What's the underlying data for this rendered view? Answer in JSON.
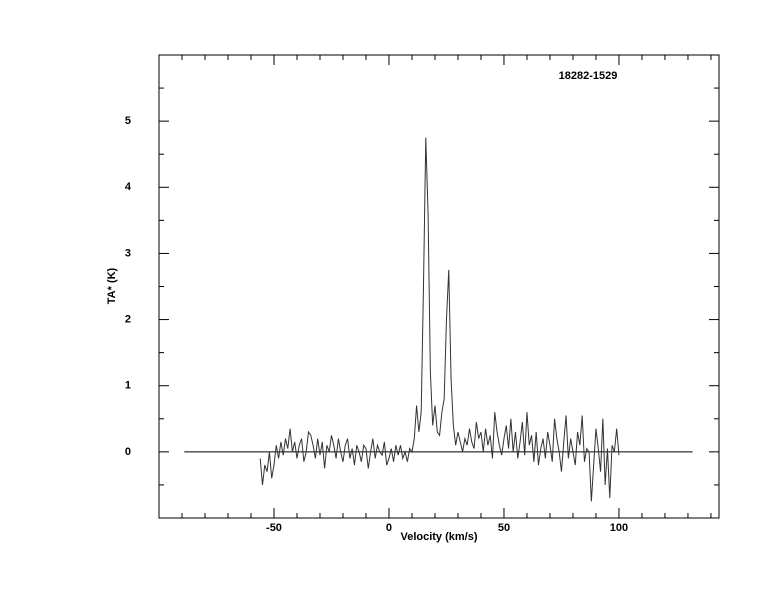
{
  "chart_data": {
    "type": "line",
    "title": "18282-1529",
    "x_label": "Velocity (km/s)",
    "y_label": "TA* (K)",
    "xlim": [
      -100,
      143.5
    ],
    "ylim": [
      -1,
      6
    ],
    "xticks": [
      -50,
      0,
      50,
      100
    ],
    "yticks": [
      0,
      1,
      2,
      3,
      4,
      5
    ],
    "xticks_minor": [
      -90,
      -80,
      -70,
      -60,
      -40,
      -30,
      -20,
      -10,
      10,
      20,
      30,
      40,
      60,
      70,
      80,
      90,
      110,
      120,
      130,
      140
    ],
    "yticks_minor": [
      -0.5,
      0.5,
      1.5,
      2.5,
      3.5,
      4.5,
      5.5
    ],
    "baseline": {
      "x": [
        -89,
        132
      ],
      "y": [
        0,
        0
      ]
    },
    "color": "#333333",
    "x": [
      -56,
      -55,
      -54,
      -53,
      -52,
      -51,
      -50,
      -49,
      -48,
      -47,
      -46,
      -45,
      -44,
      -43,
      -42,
      -41,
      -40,
      -39,
      -38,
      -37,
      -36,
      -35,
      -34,
      -33,
      -32,
      -31,
      -30,
      -29,
      -28,
      -27,
      -26,
      -25,
      -24,
      -23,
      -22,
      -21,
      -20,
      -19,
      -18,
      -17,
      -16,
      -15,
      -14,
      -13,
      -12,
      -11,
      -10,
      -9,
      -8,
      -7,
      -6,
      -5,
      -4,
      -3,
      -2,
      -1,
      0,
      1,
      2,
      3,
      4,
      5,
      6,
      7,
      8,
      9,
      10,
      11,
      12,
      13,
      14,
      15,
      16,
      17,
      18,
      19,
      20,
      21,
      22,
      23,
      24,
      25,
      26,
      27,
      28,
      29,
      30,
      31,
      32,
      33,
      34,
      35,
      36,
      37,
      38,
      39,
      40,
      41,
      42,
      43,
      44,
      45,
      46,
      47,
      48,
      49,
      50,
      51,
      52,
      53,
      54,
      55,
      56,
      57,
      58,
      59,
      60,
      61,
      62,
      63,
      64,
      65,
      66,
      67,
      68,
      69,
      70,
      71,
      72,
      73,
      74,
      75,
      76,
      77,
      78,
      79,
      80,
      81,
      82,
      83,
      84,
      85,
      86,
      87,
      88,
      89,
      90,
      91,
      92,
      93,
      94,
      95,
      96,
      97,
      98,
      99,
      100
    ],
    "values": [
      -0.1,
      -0.5,
      -0.2,
      -0.3,
      0.0,
      -0.4,
      -0.2,
      0.1,
      -0.1,
      0.15,
      -0.05,
      0.2,
      0.05,
      0.35,
      0.0,
      0.15,
      -0.1,
      0.1,
      0.2,
      -0.15,
      0.0,
      0.3,
      0.25,
      0.1,
      -0.1,
      0.2,
      -0.05,
      0.15,
      -0.25,
      0.1,
      0.0,
      0.25,
      0.1,
      -0.1,
      0.2,
      0.0,
      -0.15,
      0.1,
      0.2,
      -0.1,
      0.05,
      -0.2,
      0.1,
      0.0,
      -0.15,
      0.1,
      0.05,
      -0.25,
      0.0,
      0.2,
      -0.1,
      0.1,
      0.0,
      -0.05,
      0.15,
      -0.2,
      -0.1,
      0.05,
      -0.15,
      0.1,
      -0.05,
      0.1,
      -0.1,
      0.0,
      -0.15,
      0.05,
      0.0,
      0.2,
      0.7,
      0.3,
      0.6,
      2.5,
      4.75,
      3.6,
      1.2,
      0.4,
      0.7,
      0.3,
      0.25,
      0.6,
      0.8,
      2.0,
      2.75,
      1.1,
      0.4,
      0.1,
      0.3,
      0.15,
      0.0,
      0.2,
      0.1,
      0.35,
      0.15,
      0.05,
      0.45,
      0.2,
      0.3,
      0.0,
      0.35,
      0.1,
      0.25,
      -0.1,
      0.6,
      0.3,
      0.1,
      -0.05,
      0.2,
      0.4,
      0.05,
      0.5,
      0.0,
      0.3,
      -0.1,
      0.15,
      0.45,
      -0.05,
      0.6,
      0.1,
      0.25,
      -0.15,
      0.3,
      -0.2,
      0.05,
      0.2,
      -0.1,
      0.3,
      0.1,
      -0.15,
      0.5,
      0.2,
      0.0,
      -0.3,
      0.15,
      0.55,
      -0.1,
      0.2,
      0.0,
      -0.2,
      0.3,
      0.1,
      0.55,
      -0.15,
      0.05,
      0.0,
      -0.75,
      -0.2,
      0.35,
      0.05,
      -0.3,
      0.5,
      -0.5,
      0.05,
      -0.7,
      0.1,
      0.0,
      0.35,
      -0.05
    ]
  }
}
